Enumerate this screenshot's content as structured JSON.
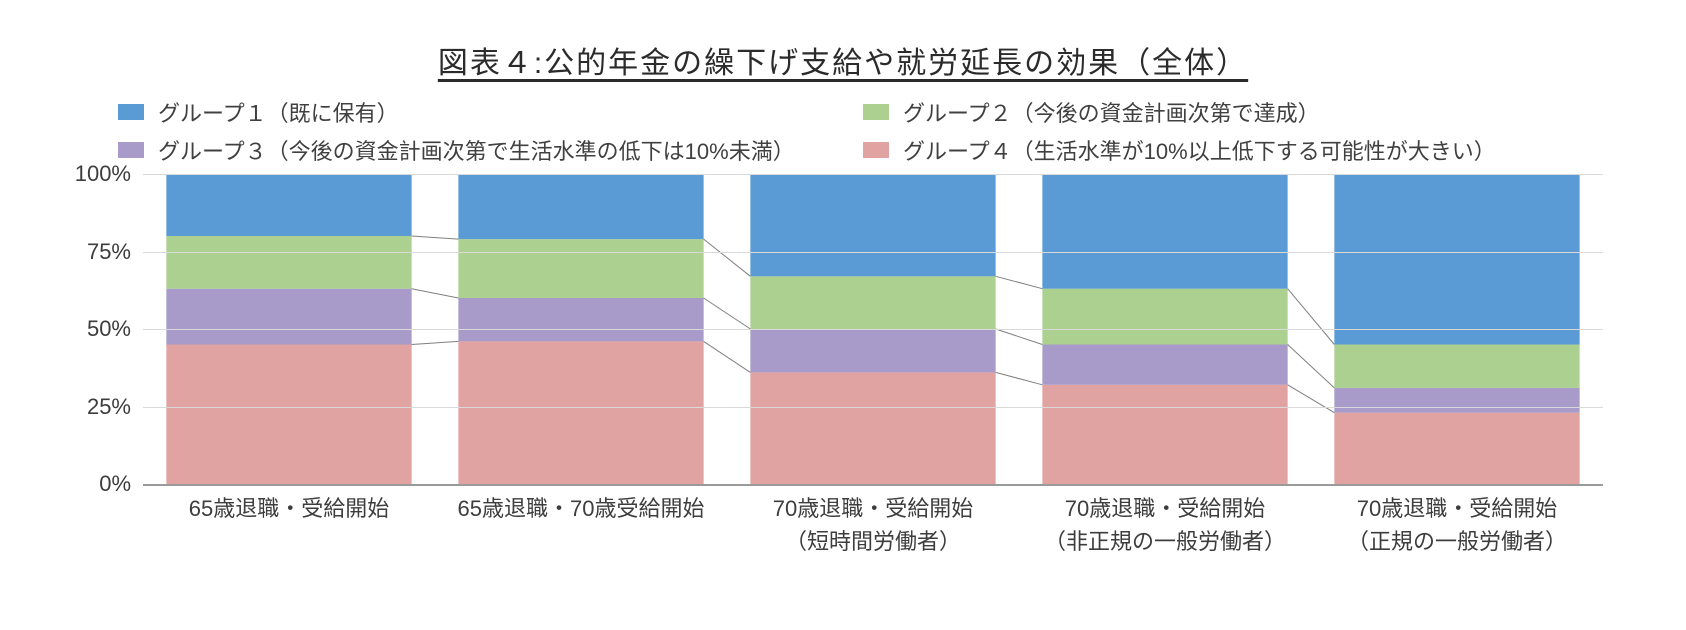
{
  "title": "図表４:公的年金の繰下げ支給や就労延長の効果（全体）",
  "chart": {
    "type": "stacked-bar-100",
    "background_color": "#ffffff",
    "title_fontsize": 30,
    "label_fontsize": 22,
    "legend_fontsize": 22,
    "legend_position": "top",
    "bar_width_ratio": 0.84,
    "gap_ratio": 0.16,
    "ylim": [
      0,
      100
    ],
    "ytick_step": 25,
    "yticks": [
      {
        "value": 0,
        "label": "0%"
      },
      {
        "value": 25,
        "label": "25%"
      },
      {
        "value": 50,
        "label": "50%"
      },
      {
        "value": 75,
        "label": "75%"
      },
      {
        "value": 100,
        "label": "100%"
      }
    ],
    "gridline_color": "#d9d9d9",
    "axis_color": "#9a9a9a",
    "connector_color": "#808080",
    "connector_width": 1,
    "bar_outline_color": "#ffffff",
    "bar_outline_width": 0,
    "categories": [
      {
        "line1": "65歳退職・受給開始",
        "line2": ""
      },
      {
        "line1": "65歳退職・70歳受給開始",
        "line2": ""
      },
      {
        "line1": "70歳退職・受給開始",
        "line2": "（短時間労働者）"
      },
      {
        "line1": "70歳退職・受給開始",
        "line2": "（非正規の一般労働者）"
      },
      {
        "line1": "70歳退職・受給開始",
        "line2": "（正規の一般労働者）"
      }
    ],
    "series": [
      {
        "id": "g1",
        "legend": "グループ１（既に保有）",
        "color": "#5b9bd5"
      },
      {
        "id": "g2",
        "legend": "グループ２（今後の資金計画次第で達成）",
        "color": "#abd08f"
      },
      {
        "id": "g3",
        "legend": "グループ３（今後の資金計画次第で生活水準の低下は10%未満）",
        "color": "#a99bc9"
      },
      {
        "id": "g4",
        "legend": "グループ４（生活水準が10%以上低下する可能性が大きい）",
        "color": "#e1a2a2"
      }
    ],
    "stack_order_bottom_to_top": [
      "g4",
      "g3",
      "g2",
      "g1"
    ],
    "values_by_group": {
      "g1": [
        20,
        21,
        33,
        37,
        55
      ],
      "g2": [
        17,
        19,
        17,
        18,
        14
      ],
      "g3": [
        18,
        14,
        14,
        13,
        8
      ],
      "g4": [
        45,
        46,
        36,
        32,
        23
      ]
    }
  }
}
